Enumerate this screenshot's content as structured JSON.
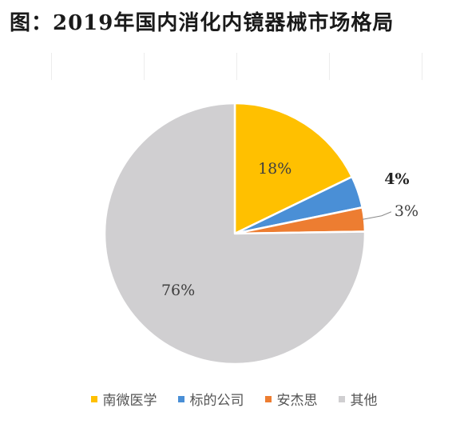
{
  "title": "图：2019年国内消化内镜器械市场格局",
  "chart_data": {
    "type": "pie",
    "categories": [
      "南微医学",
      "标的公司",
      "安杰思",
      "其他"
    ],
    "values": [
      18,
      4,
      3,
      76
    ],
    "labels": [
      "18%",
      "4%",
      "3%",
      "76%"
    ],
    "colors": [
      "#ffc000",
      "#4a8fd6",
      "#ed7d31",
      "#d0cfd1"
    ],
    "legend_position": "bottom"
  }
}
